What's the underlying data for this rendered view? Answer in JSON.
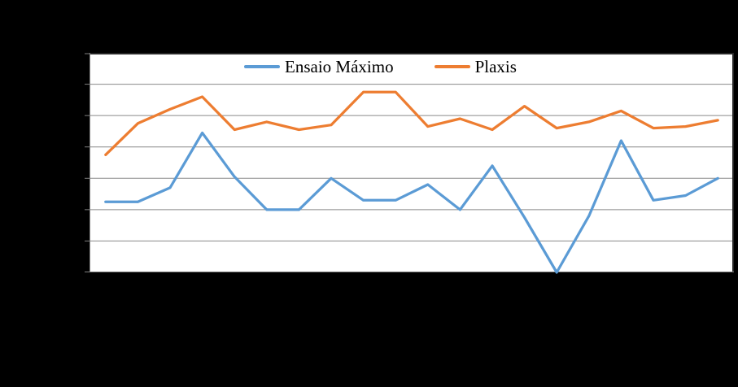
{
  "chart_data": {
    "type": "line",
    "title": "",
    "xlabel": "",
    "ylabel": "",
    "x_points": 20,
    "ylim": [
      0,
      7
    ],
    "y_gridline_interval": 1,
    "grid": true,
    "tick_labels_visible": false,
    "legend_position": "inside-top-center",
    "note": "Axis tick labels are not visible against the black background; series values are expressed in gridline units (plot has 7 horizontal bands between bottom and top border).",
    "series": [
      {
        "name": "Ensaio Máximo",
        "color": "#5B9BD5",
        "values": [
          2.25,
          2.25,
          2.7,
          4.45,
          3.05,
          2.0,
          2.0,
          3.0,
          2.3,
          2.3,
          2.8,
          2.0,
          3.4,
          1.75,
          0.0,
          1.8,
          4.2,
          2.3,
          2.45,
          3.0
        ]
      },
      {
        "name": "Plaxis",
        "color": "#ED7D31",
        "values": [
          3.75,
          4.75,
          5.2,
          5.6,
          4.55,
          4.8,
          4.55,
          4.7,
          5.75,
          5.75,
          4.65,
          4.9,
          4.55,
          5.3,
          4.6,
          4.8,
          5.15,
          4.6,
          4.65,
          4.85
        ]
      }
    ],
    "colors": {
      "page_background": "#000000",
      "plot_background": "#FFFFFF",
      "gridline": "#898989",
      "axis_line": "#7F7F7F",
      "plot_border_dark": "#262626",
      "legend_text": "#000000"
    }
  }
}
